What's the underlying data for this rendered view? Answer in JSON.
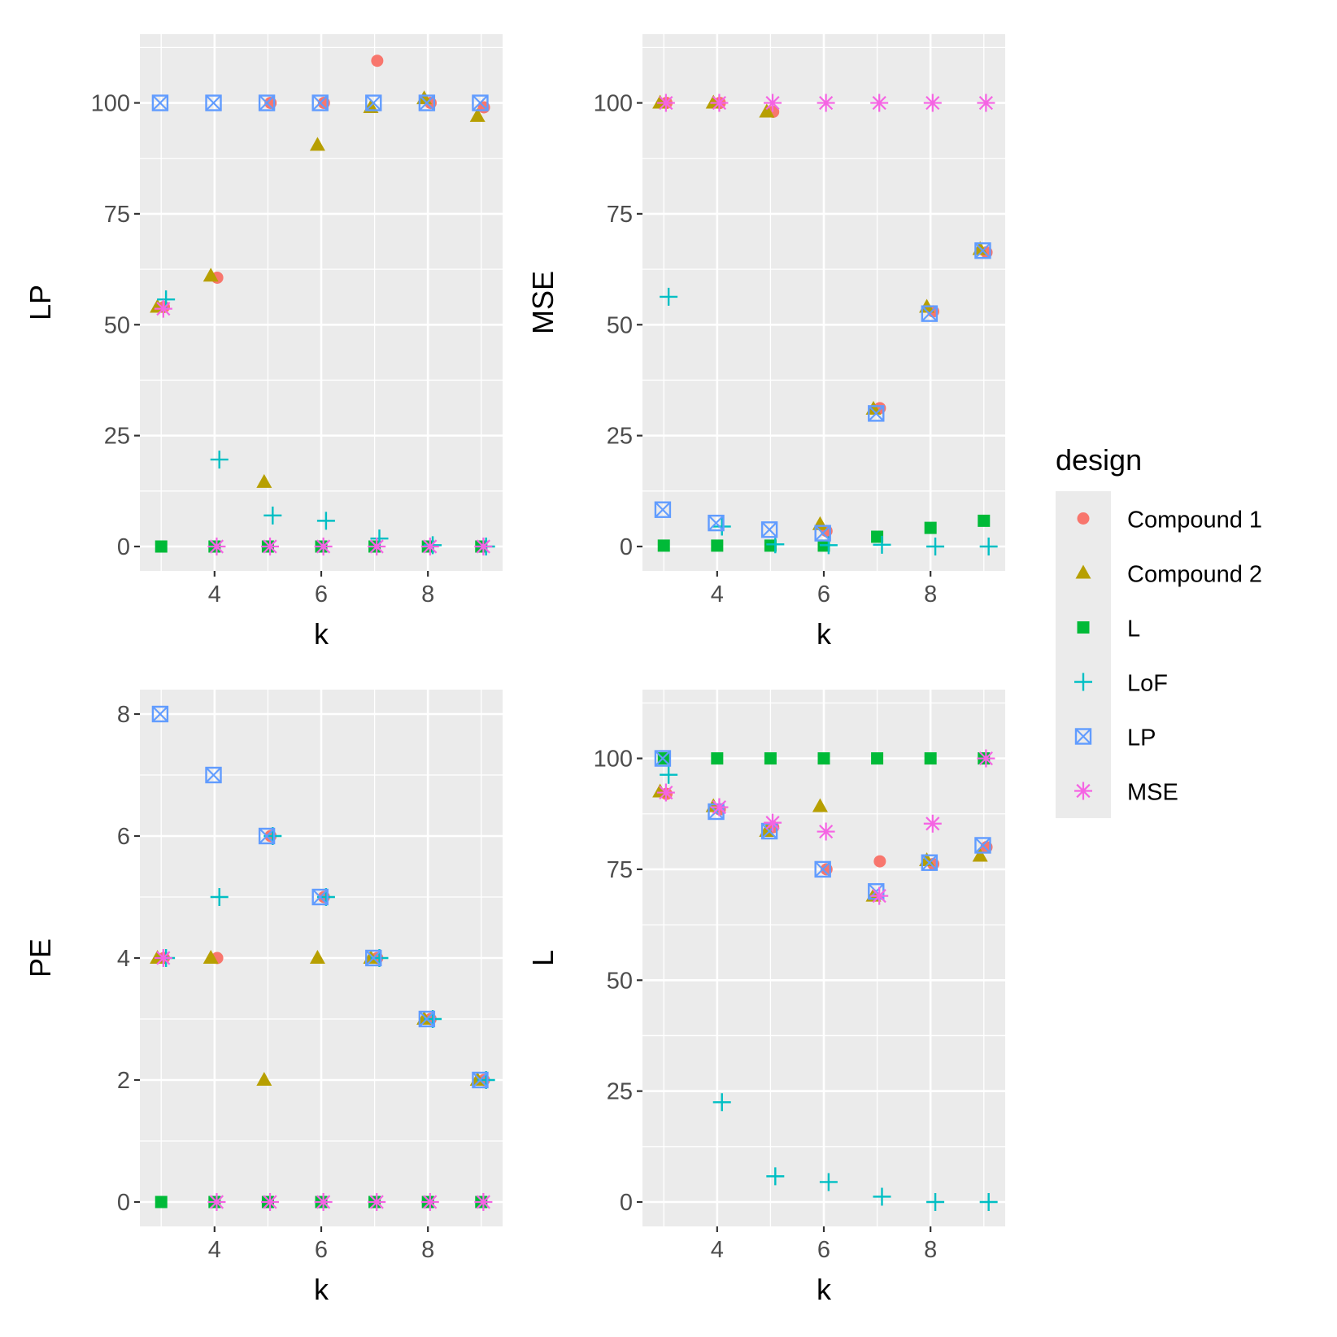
{
  "chart_data": {
    "type": "scatter",
    "legend": {
      "title": "design",
      "position": "right",
      "entries": [
        {
          "name": "Compound 1",
          "color": "#F8766D",
          "shape": "circle"
        },
        {
          "name": "Compound 2",
          "color": "#B79F00",
          "shape": "triangle"
        },
        {
          "name": "L",
          "color": "#00BA38",
          "shape": "square"
        },
        {
          "name": "LoF",
          "color": "#00BFC4",
          "shape": "plus"
        },
        {
          "name": "LP",
          "color": "#619CFF",
          "shape": "square-cross"
        },
        {
          "name": "MSE",
          "color": "#F564E3",
          "shape": "asterisk"
        }
      ]
    },
    "panels": [
      {
        "id": "lp",
        "xlabel": "k",
        "ylabel": "LP",
        "xlim": [
          2.6,
          9.4
        ],
        "ylim": [
          -5.5,
          115.5
        ],
        "xticks": [
          4,
          6,
          8
        ],
        "yticks": [
          0,
          25,
          50,
          75,
          100
        ],
        "grid": true,
        "series": [
          {
            "name": "Compound 1",
            "x": [
              3,
              4,
              5,
              6,
              7,
              8,
              9
            ],
            "y": [
              54,
              60.6,
              100,
              100,
              109.5,
              100,
              99
            ]
          },
          {
            "name": "Compound 2",
            "x": [
              3,
              4,
              5,
              6,
              7,
              8,
              9
            ],
            "y": [
              54,
              61,
              14.5,
              90.5,
              99,
              101,
              97
            ]
          },
          {
            "name": "L",
            "x": [
              3,
              4,
              5,
              6,
              7,
              8,
              9
            ],
            "y": [
              0,
              0,
              0,
              0,
              0,
              0,
              0
            ]
          },
          {
            "name": "LoF",
            "x": [
              3,
              4,
              5,
              6,
              7,
              8,
              9
            ],
            "y": [
              55.7,
              19.6,
              7,
              5.8,
              1.8,
              0.3,
              0
            ]
          },
          {
            "name": "LP",
            "x": [
              3,
              4,
              5,
              6,
              7,
              8,
              9
            ],
            "y": [
              100,
              100,
              100,
              100,
              100,
              100,
              100
            ]
          },
          {
            "name": "MSE",
            "x": [
              3,
              4,
              5,
              6,
              7,
              8,
              9
            ],
            "y": [
              53.6,
              0,
              0,
              0,
              0,
              0,
              0
            ]
          }
        ]
      },
      {
        "id": "mse",
        "xlabel": "k",
        "ylabel": "MSE",
        "xlim": [
          2.6,
          9.4
        ],
        "ylim": [
          -5.5,
          115.5
        ],
        "xticks": [
          4,
          6,
          8
        ],
        "yticks": [
          0,
          25,
          50,
          75,
          100
        ],
        "grid": true,
        "series": [
          {
            "name": "Compound 1",
            "x": [
              3,
              4,
              5,
              6,
              7,
              8,
              9
            ],
            "y": [
              100,
              100,
              98,
              3.5,
              31.2,
              53,
              66.3
            ]
          },
          {
            "name": "Compound 2",
            "x": [
              3,
              4,
              5,
              6,
              7,
              8,
              9
            ],
            "y": [
              100,
              100,
              98,
              5,
              31,
              54,
              67
            ]
          },
          {
            "name": "L",
            "x": [
              3,
              4,
              5,
              6,
              7,
              8,
              9
            ],
            "y": [
              0.2,
              0.2,
              0.2,
              0.2,
              2.2,
              4.2,
              5.8
            ]
          },
          {
            "name": "LoF",
            "x": [
              3,
              4,
              5,
              6,
              7,
              8,
              9
            ],
            "y": [
              56.3,
              4.5,
              0.5,
              0.3,
              0.4,
              0,
              0
            ]
          },
          {
            "name": "LP",
            "x": [
              3,
              4,
              5,
              6,
              7,
              8,
              9
            ],
            "y": [
              8.3,
              5.3,
              3.8,
              3,
              30,
              52.5,
              66.7
            ]
          },
          {
            "name": "MSE",
            "x": [
              3,
              4,
              5,
              6,
              7,
              8,
              9
            ],
            "y": [
              100,
              100,
              100,
              100,
              100,
              100,
              100
            ]
          }
        ]
      },
      {
        "id": "pe",
        "xlabel": "k",
        "ylabel": "PE",
        "xlim": [
          2.6,
          9.4
        ],
        "ylim": [
          -0.4,
          8.4
        ],
        "xticks": [
          4,
          6,
          8
        ],
        "yticks": [
          0,
          2,
          4,
          6,
          8
        ],
        "grid": true,
        "series": [
          {
            "name": "Compound 1",
            "x": [
              3,
              4,
              5,
              6,
              7,
              8,
              9
            ],
            "y": [
              4,
              4,
              6,
              5,
              4,
              3,
              2
            ]
          },
          {
            "name": "Compound 2",
            "x": [
              3,
              4,
              5,
              6,
              7,
              8,
              9
            ],
            "y": [
              4,
              4,
              2,
              4,
              4,
              3,
              2
            ]
          },
          {
            "name": "L",
            "x": [
              3,
              4,
              5,
              6,
              7,
              8,
              9
            ],
            "y": [
              0,
              0,
              0,
              0,
              0,
              0,
              0
            ]
          },
          {
            "name": "LoF",
            "x": [
              3,
              4,
              5,
              6,
              7,
              8,
              9
            ],
            "y": [
              4,
              5,
              6,
              5,
              4,
              3,
              2
            ]
          },
          {
            "name": "LP",
            "x": [
              3,
              4,
              5,
              6,
              7,
              8,
              9
            ],
            "y": [
              8,
              7,
              6,
              5,
              4,
              3,
              2
            ]
          },
          {
            "name": "MSE",
            "x": [
              3,
              4,
              5,
              6,
              7,
              8,
              9
            ],
            "y": [
              4,
              0,
              0,
              0,
              0,
              0,
              0
            ]
          }
        ]
      },
      {
        "id": "l",
        "xlabel": "k",
        "ylabel": "L",
        "xlim": [
          2.6,
          9.4
        ],
        "ylim": [
          -5.5,
          115.5
        ],
        "xticks": [
          4,
          6,
          8
        ],
        "yticks": [
          0,
          25,
          50,
          75,
          100
        ],
        "grid": true,
        "series": [
          {
            "name": "Compound 1",
            "x": [
              3,
              4,
              5,
              6,
              7,
              8,
              9
            ],
            "y": [
              92,
              88.5,
              84.5,
              75,
              76.8,
              76.2,
              80
            ]
          },
          {
            "name": "Compound 2",
            "x": [
              3,
              4,
              5,
              6,
              7,
              8,
              9
            ],
            "y": [
              92.5,
              89.2,
              83.6,
              89.2,
              69,
              77,
              78
            ]
          },
          {
            "name": "L",
            "x": [
              3,
              4,
              5,
              6,
              7,
              8,
              9
            ],
            "y": [
              100,
              100,
              100,
              100,
              100,
              100,
              100
            ]
          },
          {
            "name": "LoF",
            "x": [
              3,
              4,
              5,
              6,
              7,
              8,
              9
            ],
            "y": [
              96.3,
              22.5,
              5.8,
              4.5,
              1.2,
              0,
              0
            ]
          },
          {
            "name": "LP",
            "x": [
              3,
              4,
              5,
              6,
              7,
              8,
              9
            ],
            "y": [
              100,
              88,
              83.6,
              75,
              70,
              76.5,
              80.4
            ]
          },
          {
            "name": "MSE",
            "x": [
              3,
              4,
              5,
              6,
              7,
              8,
              9
            ],
            "y": [
              92.3,
              89,
              85.5,
              83.5,
              69,
              85.3,
              100
            ]
          }
        ]
      }
    ]
  }
}
